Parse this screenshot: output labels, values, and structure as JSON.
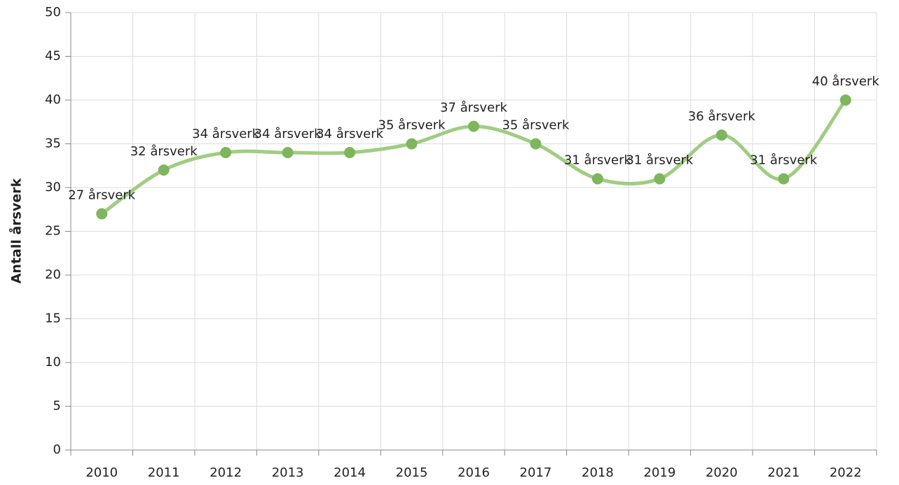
{
  "chart_data": {
    "type": "line",
    "y_label": "Antall årsverk",
    "categories": [
      "2010",
      "2011",
      "2012",
      "2013",
      "2014",
      "2015",
      "2016",
      "2017",
      "2018",
      "2019",
      "2020",
      "2021",
      "2022"
    ],
    "series": [
      {
        "name": "Antall årsverk",
        "color": "#7db65c",
        "line_color": "#9fcd82",
        "values": [
          27,
          32,
          34,
          34,
          34,
          35,
          37,
          35,
          31,
          31,
          36,
          31,
          40
        ],
        "value_labels": [
          "27 årsverk",
          "32 årsverk",
          "34 årsverk",
          "34 årsverk",
          "34 årsverk",
          "35 årsverk",
          "37 årsverk",
          "35 årsverk",
          "31 årsverk",
          "31 årsverk",
          "36 årsverk",
          "31 årsverk",
          "40 årsverk"
        ]
      }
    ],
    "ylim": [
      0,
      50
    ],
    "yticks": [
      0,
      5,
      10,
      15,
      20,
      25,
      30,
      35,
      40,
      45,
      50
    ],
    "grid": true,
    "smooth": true
  }
}
